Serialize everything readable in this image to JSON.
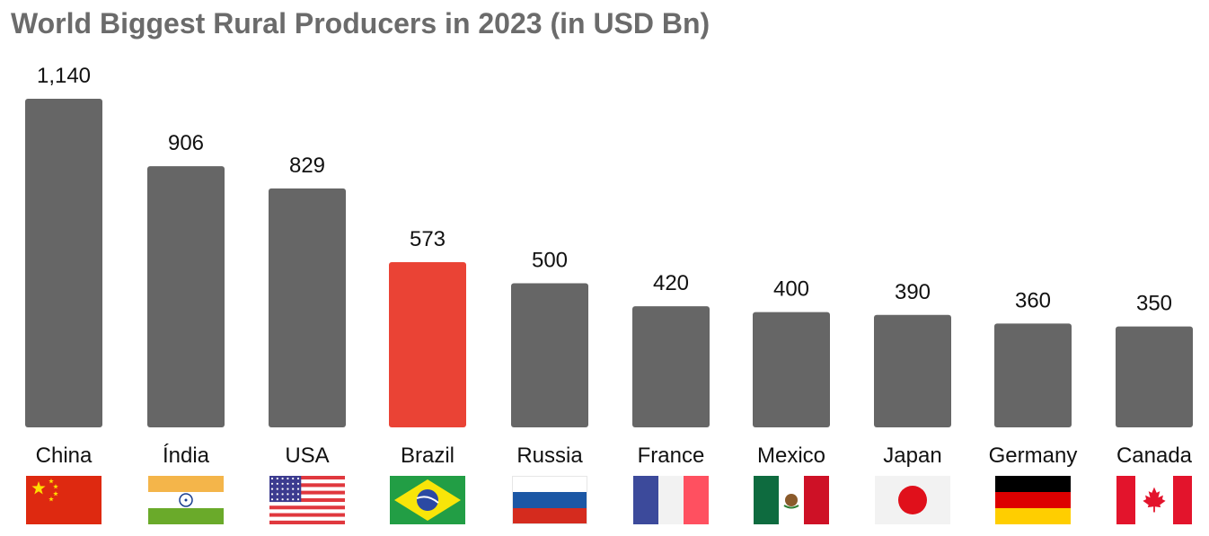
{
  "chart_data": {
    "type": "bar",
    "title": "World Biggest Rural Producers in 2023 (in USD Bn)",
    "xlabel": "",
    "ylabel": "",
    "ylim": [
      0,
      1140
    ],
    "grid": false,
    "categories": [
      "China",
      "Índia",
      "USA",
      "Brazil",
      "Russia",
      "France",
      "Mexico",
      "Japan",
      "Germany",
      "Canada"
    ],
    "values": [
      1140,
      906,
      829,
      573,
      500,
      420,
      400,
      390,
      360,
      350
    ],
    "value_labels": [
      "1,140",
      "906",
      "829",
      "573",
      "500",
      "420",
      "400",
      "390",
      "360",
      "350"
    ],
    "colors": {
      "default": "#666666",
      "highlight": "#ea4335",
      "highlight_category": "Brazil"
    },
    "flags": [
      "china-flag-icon",
      "india-flag-icon",
      "usa-flag-icon",
      "brazil-flag-icon",
      "russia-flag-icon",
      "france-flag-icon",
      "mexico-flag-icon",
      "japan-flag-icon",
      "germany-flag-icon",
      "canada-flag-icon"
    ]
  }
}
